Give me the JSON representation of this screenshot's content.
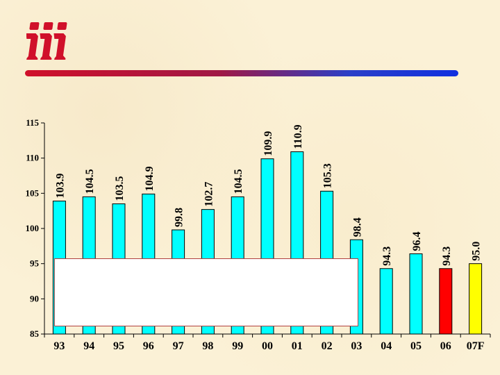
{
  "chart_data": {
    "type": "bar",
    "categories": [
      "93",
      "94",
      "95",
      "96",
      "97",
      "98",
      "99",
      "00",
      "01",
      "02",
      "03",
      "04",
      "05",
      "06",
      "07F"
    ],
    "values": [
      103.9,
      104.5,
      103.5,
      104.9,
      99.8,
      102.7,
      104.5,
      109.9,
      110.9,
      105.3,
      98.4,
      94.3,
      96.4,
      94.3,
      95.0
    ],
    "value_labels": [
      "103.9",
      "104.5",
      "103.5",
      "104.9",
      "99.8",
      "102.7",
      "104.5",
      "109.9",
      "110.9",
      "105.3",
      "98.4",
      "94.3",
      "96.4",
      "94.3",
      "95.0"
    ],
    "bar_colors": [
      "#00ffff",
      "#00ffff",
      "#00ffff",
      "#00ffff",
      "#00ffff",
      "#00ffff",
      "#00ffff",
      "#00ffff",
      "#00ffff",
      "#00ffff",
      "#00ffff",
      "#00ffff",
      "#00ffff",
      "#ff0000",
      "#ffff00"
    ],
    "ylim": [
      85,
      115
    ],
    "yticks": [
      "85",
      "90",
      "95",
      "100",
      "105",
      "110",
      "115"
    ],
    "title": "",
    "xlabel": "",
    "ylabel": "",
    "grid": false,
    "legend": "none"
  },
  "colors": {
    "background": "#fbf1d6",
    "logo": "#d0102a",
    "rule_start": "#d0102a",
    "rule_end": "#1030e0"
  },
  "logo_icon": "iii-logo-icon"
}
